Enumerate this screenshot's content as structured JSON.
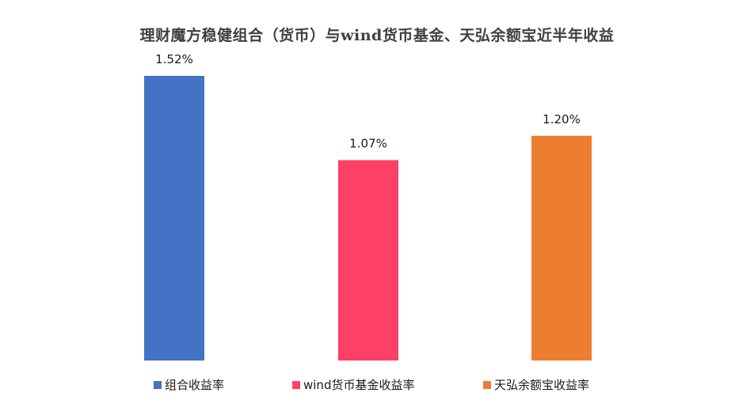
{
  "chart_data": {
    "type": "bar",
    "title": "理财魔方稳健组合（货币）与wind货币基金、天弘余额宝近半年收益",
    "categories": [
      "组合收益率",
      "wind货币基金收益率",
      "天弘余额宝收益率"
    ],
    "values": [
      1.52,
      1.07,
      1.2
    ],
    "data_labels": [
      "1.52%",
      "1.07%",
      "1.20%"
    ],
    "unit": "%",
    "colors": [
      "#4472C4",
      "#FF4066",
      "#ED7D31"
    ],
    "ylim": [
      0,
      1.6
    ],
    "grid": false,
    "legend": {
      "placement": "bottom",
      "entries": [
        "组合收益率",
        "wind货币基金收益率",
        "天弘余额宝收益率"
      ]
    },
    "xlabel": "",
    "ylabel": ""
  }
}
